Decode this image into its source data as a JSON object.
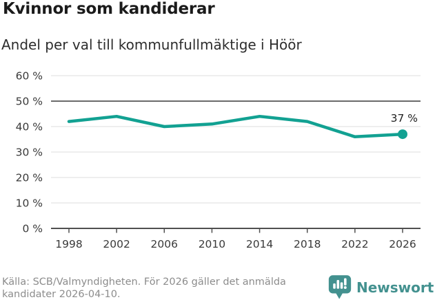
{
  "header": {
    "title": "Kvinnor som kandiderar",
    "subtitle": "Andel per val till kommunfullmäktige i Höör"
  },
  "chart_data": {
    "type": "line",
    "title": "Kvinnor som kandiderar",
    "subtitle": "Andel per val till kommunfullmäktige i Höör",
    "categories": [
      "1998",
      "2002",
      "2006",
      "2010",
      "2014",
      "2018",
      "2022",
      "2026"
    ],
    "values": [
      42,
      44,
      40,
      41,
      44,
      42,
      36,
      37
    ],
    "unit": "%",
    "xlabel": "",
    "ylabel": "",
    "ylim": [
      0,
      60
    ],
    "ytick_step": 10,
    "ytick_labels": [
      "0 %",
      "10 %",
      "20 %",
      "30 %",
      "40 %",
      "50 %",
      "60 %"
    ],
    "grid": true,
    "reference_line": 50,
    "end_point_label": "37 %",
    "legend_position": "none",
    "colors": {
      "line": "#12a192",
      "grid": "#e4e4e4",
      "reference_line": "#6a6a6a",
      "axis": "#4f4f4f",
      "tick_label": "#3a3a3a",
      "end_label": "#1f1f1f"
    }
  },
  "footer": {
    "source_line1": "Källa: SCB/Valmyndigheten. För 2026 gäller det anmälda",
    "source_line2": "kandidater 2026-04-10.",
    "brand": {
      "name": "Newsworthy",
      "color": "#43918f",
      "icon": "newsworthy-speech-bubble-chart-icon"
    }
  }
}
